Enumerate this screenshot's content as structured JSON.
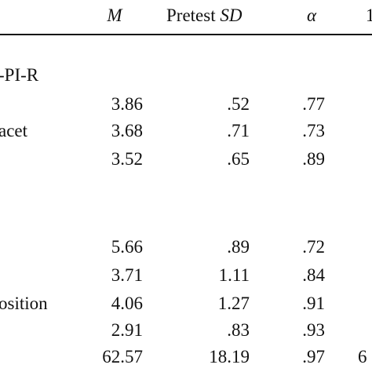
{
  "header": {
    "m": "M",
    "pretest": "Pretest",
    "sd": "SD",
    "alpha": "α",
    "partial": "1"
  },
  "section_labels": [
    {
      "text": "-PI-R"
    },
    {
      "text": "acet"
    },
    {
      "text": "osition"
    }
  ],
  "rows": [
    {
      "m": "3.86",
      "sd": ".52",
      "alpha": ".77",
      "extra": ""
    },
    {
      "m": "3.68",
      "sd": ".71",
      "alpha": ".73",
      "extra": ""
    },
    {
      "m": "3.52",
      "sd": ".65",
      "alpha": ".89",
      "extra": ""
    },
    {
      "m": "5.66",
      "sd": ".89",
      "alpha": ".72",
      "extra": ""
    },
    {
      "m": "3.71",
      "sd": "1.11",
      "alpha": ".84",
      "extra": ""
    },
    {
      "m": "4.06",
      "sd": "1.27",
      "alpha": ".91",
      "extra": ""
    },
    {
      "m": "2.91",
      "sd": ".83",
      "alpha": ".93",
      "extra": ""
    },
    {
      "m": "62.57",
      "sd": "18.19",
      "alpha": ".97",
      "extra": "6"
    }
  ]
}
